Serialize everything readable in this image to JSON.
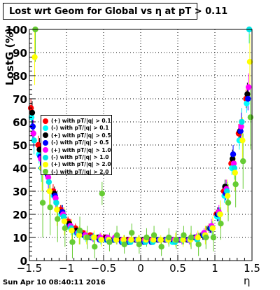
{
  "title": "Lost wrt Geom for Global vs  η at pT > 0.11",
  "ylabel": "LostG (%)",
  "xlabel": "η",
  "footer": "Sun Apr 10 08:40:11 2016",
  "colors": {
    "background": "#ffffff",
    "frame": "#000000",
    "grid": "#000000"
  },
  "legend": [
    {
      "label": "(+) with pT/|q| > 0.1",
      "color": "#ff0000"
    },
    {
      "label": "(-) with pT/|q| > 0.1",
      "color": "#00ffff"
    },
    {
      "label": "(+) with pT/|q| > 0.5",
      "color": "#000000"
    },
    {
      "label": "(-) with pT/|q| > 0.5",
      "color": "#0000ff"
    },
    {
      "label": "(+) with pT/|q| > 1.0",
      "color": "#ff00ff"
    },
    {
      "label": "(-) with pT/|q| > 1.0",
      "color": "#00e5e5"
    },
    {
      "label": "(+) with pT/|q| > 2.0",
      "color": "#ffff00"
    },
    {
      "label": "(-) with pT/|q| > 2.0",
      "color": "#66cc33"
    }
  ],
  "chart_data": {
    "type": "scatter",
    "title": "Lost wrt Geom for Global vs  η at pT > 0.11",
    "xlabel": "η",
    "ylabel": "LostG (%)",
    "xlim": [
      -1.5,
      1.5
    ],
    "ylim": [
      0,
      100
    ],
    "xticks": [
      -1.5,
      -1,
      -0.5,
      0,
      0.5,
      1,
      1.5
    ],
    "xtick_labels": [
      "−1.5",
      "−1",
      "−0.5",
      "0",
      "0.5",
      "1",
      "1.5"
    ],
    "yticks": [
      0,
      10,
      20,
      30,
      40,
      50,
      60,
      70,
      80,
      90,
      100
    ],
    "ytick_labels": [
      "0",
      "10",
      "20",
      "30",
      "40",
      "50",
      "60",
      "70",
      "80",
      "90",
      "100"
    ],
    "grid": true,
    "legend_position": "left",
    "x": [
      -1.45,
      -1.35,
      -1.25,
      -1.15,
      -1.05,
      -0.95,
      -0.85,
      -0.75,
      -0.65,
      -0.55,
      -0.45,
      -0.35,
      -0.25,
      -0.15,
      -0.05,
      0.05,
      0.15,
      0.25,
      0.35,
      0.45,
      0.55,
      0.65,
      0.75,
      0.85,
      0.95,
      1.05,
      1.15,
      1.25,
      1.35,
      1.45
    ],
    "series": [
      {
        "name": "(+) with pT/|q| > 0.1",
        "color": "#ff0000",
        "values": [
          66,
          50,
          40,
          30,
          22,
          17,
          14,
          12,
          11,
          10,
          10,
          9,
          9,
          9,
          9,
          9,
          9,
          9,
          9,
          9,
          9,
          9,
          10,
          11,
          14,
          20,
          30,
          42,
          55,
          70
        ],
        "errors": [
          4,
          4,
          3,
          3,
          2,
          2,
          2,
          1,
          1,
          1,
          1,
          1,
          1,
          1,
          1,
          1,
          1,
          1,
          1,
          1,
          1,
          1,
          1,
          1,
          2,
          2,
          3,
          3,
          4,
          4
        ]
      },
      {
        "name": "(-) with pT/|q| > 0.1",
        "color": "#00ffff",
        "values": [
          62,
          46,
          38,
          28,
          20,
          15,
          12,
          11,
          10,
          10,
          9,
          9,
          9,
          8,
          9,
          9,
          9,
          9,
          9,
          8,
          9,
          9,
          10,
          11,
          14,
          19,
          28,
          40,
          52,
          68
        ],
        "errors": [
          4,
          4,
          3,
          3,
          2,
          2,
          2,
          1,
          1,
          1,
          1,
          1,
          1,
          1,
          1,
          1,
          1,
          1,
          1,
          1,
          1,
          1,
          1,
          1,
          2,
          2,
          3,
          3,
          4,
          4
        ]
      },
      {
        "name": "(+) with pT/|q| > 0.5",
        "color": "#000000",
        "values": [
          64,
          48,
          39,
          29,
          21,
          16,
          13,
          11,
          10,
          10,
          10,
          9,
          9,
          9,
          9,
          9,
          9,
          9,
          9,
          9,
          9,
          9,
          10,
          11,
          14,
          20,
          32,
          44,
          56,
          72
        ],
        "errors": [
          5,
          5,
          4,
          3,
          3,
          2,
          2,
          2,
          1,
          1,
          1,
          1,
          1,
          1,
          1,
          1,
          1,
          1,
          1,
          1,
          1,
          1,
          1,
          2,
          2,
          3,
          3,
          4,
          5,
          5
        ]
      },
      {
        "name": "(-) with pT/|q| > 0.5",
        "color": "#0000ff",
        "values": [
          58,
          45,
          37,
          28,
          21,
          15,
          12,
          11,
          10,
          9,
          9,
          9,
          8,
          8,
          9,
          8,
          8,
          9,
          9,
          9,
          9,
          9,
          10,
          11,
          14,
          20,
          29,
          46,
          56,
          70
        ],
        "errors": [
          5,
          5,
          4,
          3,
          3,
          2,
          2,
          2,
          1,
          1,
          1,
          1,
          1,
          1,
          1,
          1,
          1,
          1,
          1,
          1,
          1,
          1,
          1,
          2,
          2,
          3,
          3,
          4,
          5,
          5
        ]
      },
      {
        "name": "(+) with pT/|q| > 1.0",
        "color": "#ff00ff",
        "values": [
          55,
          44,
          36,
          27,
          20,
          15,
          12,
          11,
          10,
          10,
          10,
          10,
          9,
          9,
          9,
          9,
          9,
          9,
          9,
          9,
          9,
          9,
          10,
          12,
          15,
          21,
          31,
          42,
          58,
          75
        ],
        "errors": [
          6,
          6,
          5,
          4,
          3,
          3,
          2,
          2,
          2,
          2,
          1,
          1,
          1,
          1,
          1,
          1,
          1,
          1,
          1,
          1,
          2,
          2,
          2,
          2,
          3,
          3,
          4,
          5,
          6,
          6
        ]
      },
      {
        "name": "(-) with pT/|q| > 1.0",
        "color": "#00e5e5",
        "values": [
          52,
          40,
          34,
          25,
          19,
          14,
          12,
          10,
          10,
          9,
          9,
          9,
          8,
          8,
          9,
          8,
          8,
          9,
          9,
          8,
          9,
          9,
          9,
          11,
          14,
          20,
          30,
          40,
          60,
          100
        ],
        "errors": [
          6,
          6,
          5,
          4,
          3,
          3,
          2,
          2,
          2,
          2,
          1,
          1,
          1,
          1,
          1,
          1,
          1,
          1,
          1,
          1,
          2,
          2,
          2,
          2,
          3,
          3,
          4,
          5,
          6,
          6
        ]
      },
      {
        "name": "(+) with pT/|q| > 2.0",
        "color": "#ffff00",
        "values": [
          88,
          40,
          30,
          22,
          17,
          13,
          11,
          10,
          10,
          9,
          9,
          9,
          9,
          9,
          9,
          9,
          9,
          9,
          9,
          9,
          9,
          9,
          10,
          11,
          14,
          20,
          28,
          38,
          52,
          86
        ],
        "errors": [
          12,
          10,
          8,
          7,
          6,
          5,
          4,
          3,
          3,
          3,
          2,
          2,
          2,
          2,
          2,
          2,
          2,
          2,
          2,
          3,
          3,
          3,
          3,
          4,
          5,
          6,
          7,
          8,
          10,
          12
        ]
      },
      {
        "name": "(-) with pT/|q| > 2.0",
        "color": "#66cc33",
        "values": [
          100,
          25,
          23,
          18,
          14,
          8,
          13,
          10,
          6,
          29,
          8,
          11,
          7,
          12,
          7,
          10,
          11,
          6,
          10,
          9,
          11,
          10,
          7,
          10,
          10,
          16,
          25,
          33,
          43,
          62
        ],
        "errors": [
          14,
          15,
          12,
          10,
          8,
          7,
          6,
          5,
          5,
          5,
          4,
          4,
          4,
          4,
          4,
          4,
          4,
          4,
          4,
          4,
          4,
          5,
          5,
          5,
          6,
          7,
          8,
          10,
          12,
          14
        ]
      }
    ]
  }
}
